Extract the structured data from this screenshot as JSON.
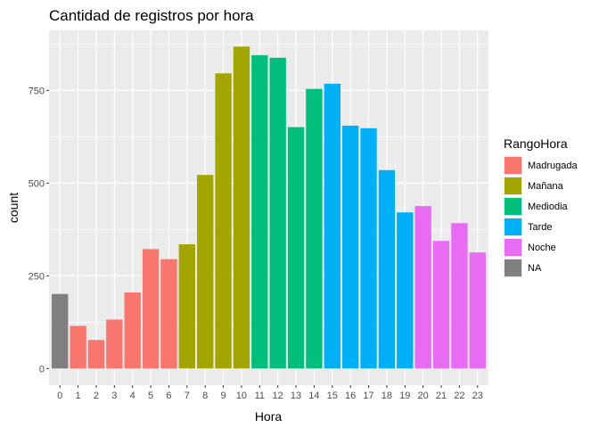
{
  "chart_data": {
    "type": "bar",
    "title": "Cantidad de registros por hora",
    "xlabel": "Hora",
    "ylabel": "count",
    "categories": [
      "0",
      "1",
      "2",
      "3",
      "4",
      "5",
      "6",
      "7",
      "8",
      "9",
      "10",
      "11",
      "12",
      "13",
      "14",
      "15",
      "16",
      "17",
      "18",
      "19",
      "20",
      "21",
      "22",
      "23"
    ],
    "values": [
      201,
      115,
      77,
      132,
      205,
      322,
      295,
      335,
      522,
      796,
      868,
      845,
      838,
      651,
      754,
      768,
      655,
      648,
      535,
      421,
      438,
      344,
      392,
      313
    ],
    "groups": [
      "NA",
      "Madrugada",
      "Madrugada",
      "Madrugada",
      "Madrugada",
      "Madrugada",
      "Madrugada",
      "Mañana",
      "Mañana",
      "Mañana",
      "Mañana",
      "Mediodia",
      "Mediodia",
      "Mediodia",
      "Mediodia",
      "Tarde",
      "Tarde",
      "Tarde",
      "Tarde",
      "Tarde",
      "Noche",
      "Noche",
      "Noche",
      "Noche"
    ],
    "yticks": [
      0,
      250,
      500,
      750
    ],
    "ylim": [
      -45,
      912
    ],
    "grid": true,
    "legend": {
      "title": "RangoHora",
      "position": "right",
      "entries": [
        {
          "label": "Madrugada",
          "color": "#F8766D"
        },
        {
          "label": "Mañana",
          "color": "#A3A500"
        },
        {
          "label": "Mediodia",
          "color": "#00BF7D"
        },
        {
          "label": "Tarde",
          "color": "#00B0F6"
        },
        {
          "label": "Noche",
          "color": "#E76BF3"
        },
        {
          "label": "NA",
          "color": "#7F7F7F"
        }
      ]
    }
  }
}
